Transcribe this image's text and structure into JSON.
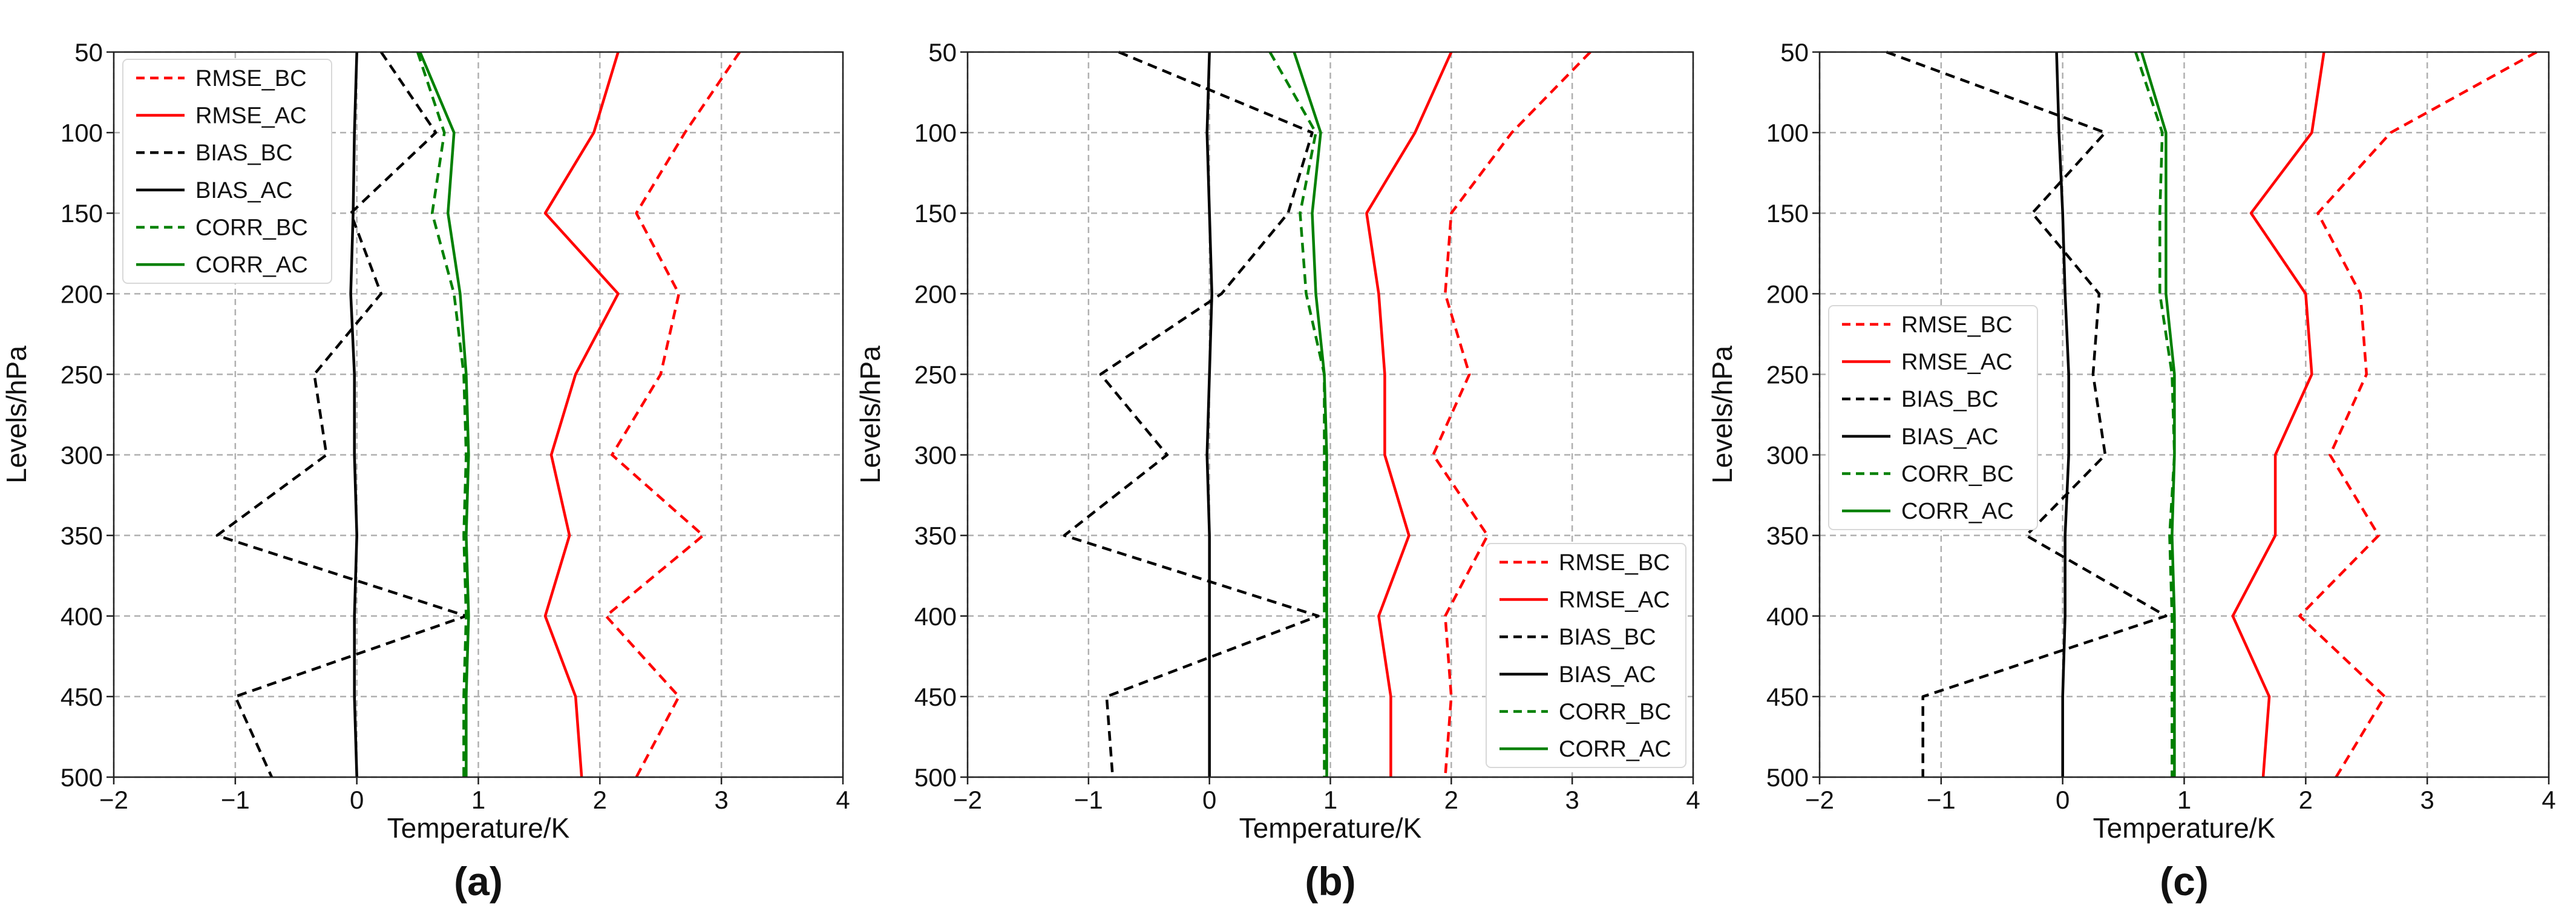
{
  "chart_data": [
    {
      "type": "line",
      "panel_label": "(a)",
      "xlabel": "Temperature/K",
      "ylabel": "Levels/hPa",
      "xlim": [
        -2,
        4
      ],
      "ylim": [
        50,
        500
      ],
      "y_inverted": true,
      "x_ticks": [
        "−2",
        "−1",
        "0",
        "1",
        "2",
        "3",
        "4"
      ],
      "y_ticks": [
        "50",
        "100",
        "150",
        "200",
        "250",
        "300",
        "350",
        "400",
        "450",
        "500"
      ],
      "grid": true,
      "legend_position": "top-left",
      "levels": [
        50,
        100,
        150,
        200,
        250,
        300,
        350,
        400,
        450,
        500
      ],
      "series": [
        {
          "name": "RMSE_BC",
          "color": "#ff0000",
          "dash": true,
          "values": [
            3.15,
            2.7,
            2.3,
            2.65,
            2.5,
            2.1,
            2.85,
            2.05,
            2.65,
            2.3
          ]
        },
        {
          "name": "RMSE_AC",
          "color": "#ff0000",
          "dash": false,
          "values": [
            2.15,
            1.95,
            1.55,
            2.15,
            1.8,
            1.6,
            1.75,
            1.55,
            1.8,
            1.85
          ]
        },
        {
          "name": "BIAS_BC",
          "color": "#000000",
          "dash": true,
          "values": [
            0.2,
            0.65,
            -0.05,
            0.2,
            -0.35,
            -0.25,
            -1.15,
            0.9,
            -1.0,
            -0.7
          ]
        },
        {
          "name": "BIAS_AC",
          "color": "#000000",
          "dash": false,
          "values": [
            0.0,
            -0.02,
            -0.03,
            -0.05,
            -0.02,
            -0.02,
            0.0,
            -0.02,
            -0.02,
            0.0
          ]
        },
        {
          "name": "CORR_BC",
          "color": "#008000",
          "dash": true,
          "values": [
            0.5,
            0.72,
            0.62,
            0.8,
            0.88,
            0.9,
            0.88,
            0.9,
            0.88,
            0.88
          ]
        },
        {
          "name": "CORR_AC",
          "color": "#008000",
          "dash": false,
          "values": [
            0.52,
            0.8,
            0.75,
            0.85,
            0.9,
            0.92,
            0.9,
            0.92,
            0.9,
            0.9
          ]
        }
      ]
    },
    {
      "type": "line",
      "panel_label": "(b)",
      "xlabel": "Temperature/K",
      "ylabel": "Levels/hPa",
      "xlim": [
        -2,
        4
      ],
      "ylim": [
        50,
        500
      ],
      "y_inverted": true,
      "x_ticks": [
        "−2",
        "−1",
        "0",
        "1",
        "2",
        "3",
        "4"
      ],
      "y_ticks": [
        "50",
        "100",
        "150",
        "200",
        "250",
        "300",
        "350",
        "400",
        "450",
        "500"
      ],
      "grid": true,
      "legend_position": "bottom-right",
      "levels": [
        50,
        100,
        150,
        200,
        250,
        300,
        350,
        400,
        450,
        500
      ],
      "series": [
        {
          "name": "RMSE_BC",
          "color": "#ff0000",
          "dash": true,
          "values": [
            3.15,
            2.5,
            2.0,
            1.95,
            2.15,
            1.85,
            2.3,
            1.95,
            2.0,
            1.95
          ]
        },
        {
          "name": "RMSE_AC",
          "color": "#ff0000",
          "dash": false,
          "values": [
            2.0,
            1.7,
            1.3,
            1.4,
            1.45,
            1.45,
            1.65,
            1.4,
            1.5,
            1.5
          ]
        },
        {
          "name": "BIAS_BC",
          "color": "#000000",
          "dash": true,
          "values": [
            -0.75,
            0.85,
            0.65,
            0.1,
            -0.9,
            -0.35,
            -1.2,
            0.9,
            -0.85,
            -0.8
          ]
        },
        {
          "name": "BIAS_AC",
          "color": "#000000",
          "dash": false,
          "values": [
            0.0,
            -0.02,
            0.0,
            0.02,
            0.0,
            -0.02,
            0.0,
            0.0,
            0.0,
            0.0
          ]
        },
        {
          "name": "CORR_BC",
          "color": "#008000",
          "dash": true,
          "values": [
            0.5,
            0.88,
            0.75,
            0.8,
            0.95,
            0.95,
            0.95,
            0.95,
            0.95,
            0.95
          ]
        },
        {
          "name": "CORR_AC",
          "color": "#008000",
          "dash": false,
          "values": [
            0.7,
            0.92,
            0.85,
            0.88,
            0.95,
            0.97,
            0.97,
            0.97,
            0.97,
            0.97
          ]
        }
      ]
    },
    {
      "type": "line",
      "panel_label": "(c)",
      "xlabel": "Temperature/K",
      "ylabel": "Levels/hPa",
      "xlim": [
        -2,
        4
      ],
      "ylim": [
        50,
        500
      ],
      "y_inverted": true,
      "x_ticks": [
        "−2",
        "−1",
        "0",
        "1",
        "2",
        "3",
        "4"
      ],
      "y_ticks": [
        "50",
        "100",
        "150",
        "200",
        "250",
        "300",
        "350",
        "400",
        "450",
        "500"
      ],
      "grid": true,
      "legend_position": "center-left",
      "levels": [
        50,
        100,
        150,
        200,
        250,
        300,
        350,
        400,
        450,
        500
      ],
      "series": [
        {
          "name": "RMSE_BC",
          "color": "#ff0000",
          "dash": true,
          "values": [
            3.9,
            2.7,
            2.1,
            2.45,
            2.5,
            2.2,
            2.6,
            1.95,
            2.65,
            2.25
          ]
        },
        {
          "name": "RMSE_AC",
          "color": "#ff0000",
          "dash": false,
          "values": [
            2.15,
            2.05,
            1.55,
            2.0,
            2.05,
            1.75,
            1.75,
            1.4,
            1.7,
            1.65
          ]
        },
        {
          "name": "BIAS_BC",
          "color": "#000000",
          "dash": true,
          "values": [
            -1.45,
            0.35,
            -0.25,
            0.3,
            0.25,
            0.35,
            -0.3,
            0.85,
            -1.15,
            -1.15
          ]
        },
        {
          "name": "BIAS_AC",
          "color": "#000000",
          "dash": false,
          "values": [
            -0.05,
            -0.03,
            0.0,
            0.02,
            0.05,
            0.05,
            0.02,
            0.02,
            0.0,
            0.0
          ]
        },
        {
          "name": "CORR_BC",
          "color": "#008000",
          "dash": true,
          "values": [
            0.6,
            0.82,
            0.8,
            0.8,
            0.9,
            0.92,
            0.88,
            0.9,
            0.9,
            0.9
          ]
        },
        {
          "name": "CORR_AC",
          "color": "#008000",
          "dash": false,
          "values": [
            0.65,
            0.85,
            0.85,
            0.85,
            0.92,
            0.92,
            0.9,
            0.92,
            0.92,
            0.92
          ]
        }
      ]
    }
  ]
}
